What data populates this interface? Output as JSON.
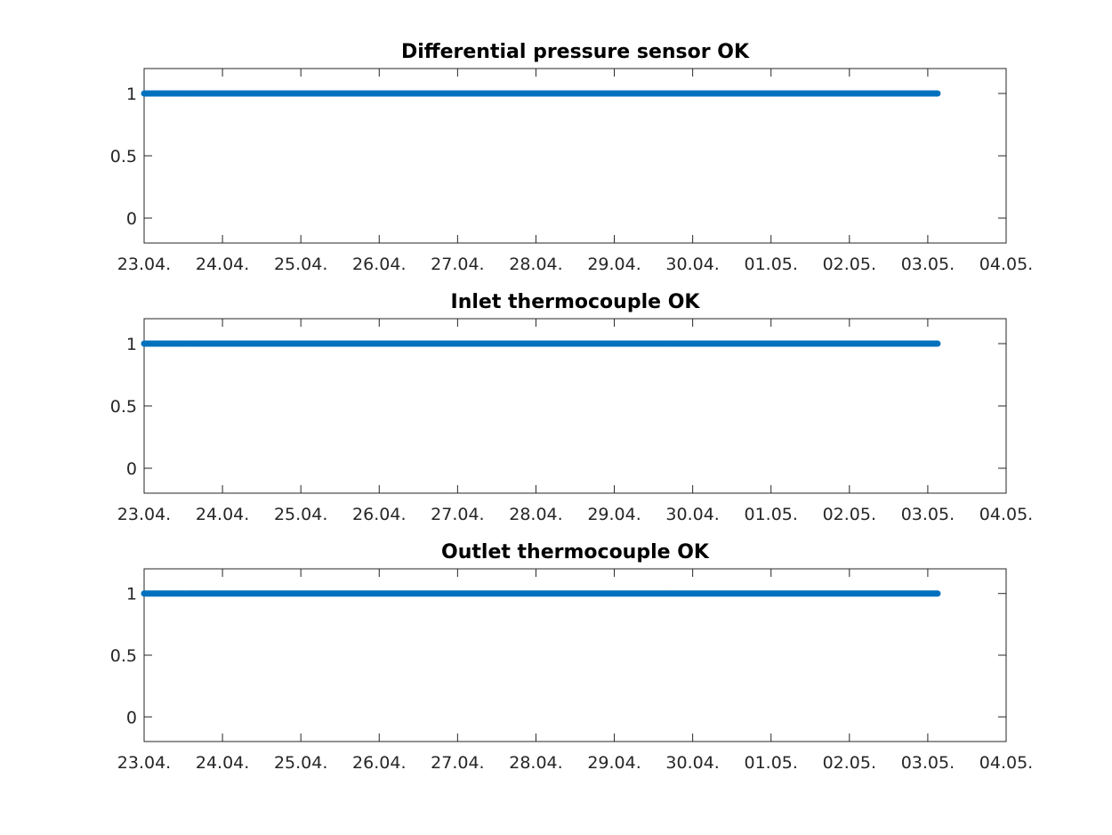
{
  "figure": {
    "background": "#ffffff"
  },
  "colors": {
    "series": "#0072bd",
    "axis": "#262626",
    "title": "#000000"
  },
  "chart_data": [
    {
      "type": "scatter",
      "title": "Differential pressure sensor OK",
      "xlabel": "",
      "ylabel": "",
      "xlim": [
        "23.04.",
        "04.05."
      ],
      "ylim": [
        -0.2,
        1.2
      ],
      "x_ticks": [
        "23.04.",
        "24.04.",
        "25.04.",
        "26.04.",
        "27.04.",
        "28.04.",
        "29.04.",
        "30.04.",
        "01.05.",
        "02.05.",
        "03.05.",
        "04.05."
      ],
      "y_ticks": [
        "0",
        "0.5",
        "1"
      ],
      "grid": false,
      "series": [
        {
          "segments": [
            {
              "x_start": "23.04. 00:00",
              "x_end": "23.04. 12:30",
              "y": 1
            },
            {
              "x_start": "23.04. 13:00",
              "x_end": "29.04. 16:45",
              "y": 1
            },
            {
              "x_start": "29.04. 17:00",
              "x_end": "03.05. 03:00",
              "y": 1
            }
          ]
        }
      ]
    },
    {
      "type": "scatter",
      "title": "Inlet thermocouple OK",
      "xlabel": "",
      "ylabel": "",
      "xlim": [
        "23.04.",
        "04.05."
      ],
      "ylim": [
        -0.2,
        1.2
      ],
      "x_ticks": [
        "23.04.",
        "24.04.",
        "25.04.",
        "26.04.",
        "27.04.",
        "28.04.",
        "29.04.",
        "30.04.",
        "01.05.",
        "02.05.",
        "03.05.",
        "04.05."
      ],
      "y_ticks": [
        "0",
        "0.5",
        "1"
      ],
      "grid": false,
      "series": [
        {
          "segments": [
            {
              "x_start": "23.04. 00:00",
              "x_end": "23.04. 12:30",
              "y": 1
            },
            {
              "x_start": "23.04. 13:00",
              "x_end": "29.04. 16:45",
              "y": 1
            },
            {
              "x_start": "29.04. 17:00",
              "x_end": "03.05. 03:00",
              "y": 1
            }
          ]
        }
      ]
    },
    {
      "type": "scatter",
      "title": "Outlet thermocouple OK",
      "xlabel": "",
      "ylabel": "",
      "xlim": [
        "23.04.",
        "04.05."
      ],
      "ylim": [
        -0.2,
        1.2
      ],
      "x_ticks": [
        "23.04.",
        "24.04.",
        "25.04.",
        "26.04.",
        "27.04.",
        "28.04.",
        "29.04.",
        "30.04.",
        "01.05.",
        "02.05.",
        "03.05.",
        "04.05."
      ],
      "y_ticks": [
        "0",
        "0.5",
        "1"
      ],
      "grid": false,
      "series": [
        {
          "segments": [
            {
              "x_start": "23.04. 00:00",
              "x_end": "23.04. 12:30",
              "y": 1
            },
            {
              "x_start": "23.04. 13:00",
              "x_end": "29.04. 16:45",
              "y": 1
            },
            {
              "x_start": "29.04. 17:00",
              "x_end": "03.05. 03:00",
              "y": 1
            }
          ]
        }
      ]
    }
  ]
}
